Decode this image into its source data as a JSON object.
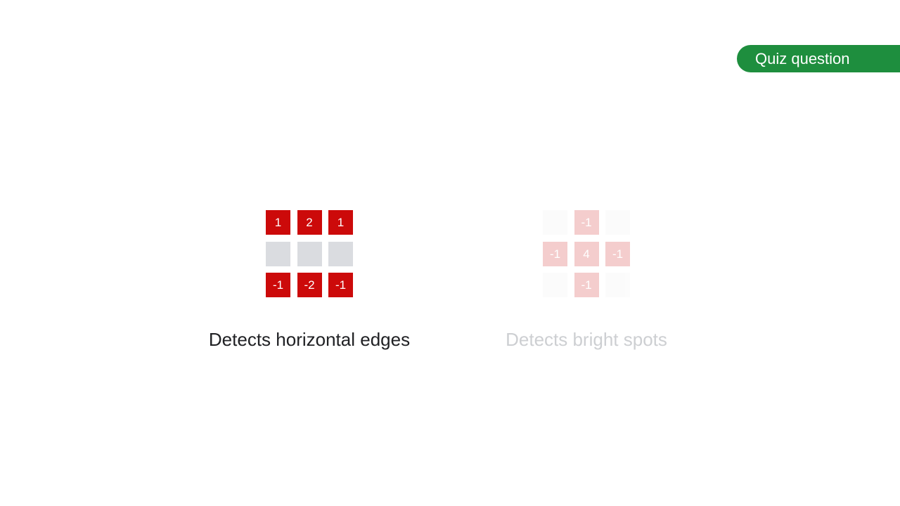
{
  "badge": {
    "label": "Quiz question",
    "color": "#1e8e3e"
  },
  "colors": {
    "active_cell": "#cc0a0a",
    "zero_cell": "#dadce0",
    "caption_active": "#202124",
    "caption_faded": "#cdcfd2"
  },
  "kernels": [
    {
      "caption": "Detects horizontal edges",
      "state": "active",
      "cells": [
        "1",
        "2",
        "1",
        "",
        "",
        "",
        "-1",
        "-2",
        "-1"
      ]
    },
    {
      "caption": "Detects bright spots",
      "state": "faded",
      "cells": [
        "",
        "-1",
        "",
        "-1",
        "4",
        "-1",
        "",
        "-1",
        ""
      ]
    }
  ]
}
